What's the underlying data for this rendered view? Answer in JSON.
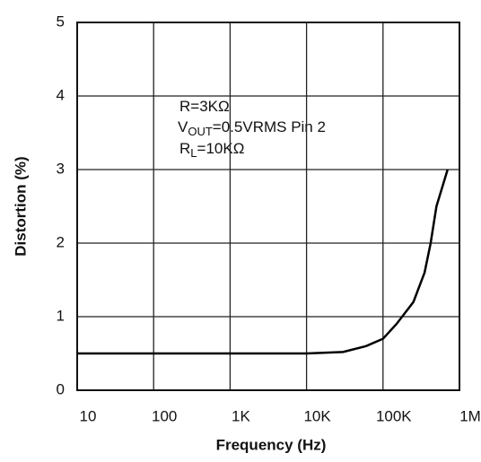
{
  "chart_data": {
    "type": "line",
    "xlabel": "Frequency (Hz)",
    "ylabel": "Distortion (%)",
    "annotations": [
      {
        "main": "R=3KΩ"
      },
      {
        "main": "V",
        "sub": "OUT",
        "rest": "=0.5VRMS Pin 2"
      },
      {
        "main": "R",
        "sub": "L",
        "rest": "=10KΩ"
      }
    ],
    "x": [
      10,
      100,
      1000,
      10000,
      30000,
      60000,
      100000,
      150000,
      250000,
      350000,
      420000,
      500000,
      700000
    ],
    "values": [
      0.5,
      0.5,
      0.5,
      0.5,
      0.52,
      0.6,
      0.7,
      0.9,
      1.2,
      1.6,
      2.0,
      2.5,
      3.0
    ],
    "color": "#000000",
    "xscale": "log",
    "xlim": [
      10,
      1000000
    ],
    "xticks": [
      10,
      100,
      {
        "value": 1000,
        "label": "1K"
      },
      {
        "value": 10000,
        "label": "10K"
      },
      {
        "value": 100000,
        "label": "100K"
      },
      {
        "value": 1000000,
        "label": "1M"
      }
    ],
    "ylim": [
      0,
      5
    ],
    "yticks": [
      0,
      1,
      2,
      3,
      4,
      5
    ],
    "grid": true
  }
}
